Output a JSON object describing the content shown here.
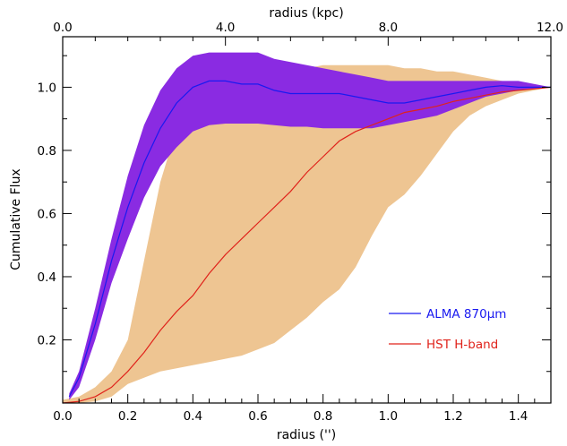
{
  "chart_data": {
    "type": "area",
    "xlabel": "radius ('')",
    "ylabel": "Cumulative Flux",
    "top_xlabel": "radius (kpc)",
    "xlim": [
      0.0,
      1.5
    ],
    "ylim": [
      0.0,
      1.16
    ],
    "x_ticks": [
      0.0,
      0.2,
      0.4,
      0.6,
      0.8,
      1.0,
      1.2,
      1.4
    ],
    "x_tick_labels": [
      "0.0",
      "0.2",
      "0.4",
      "0.6",
      "0.8",
      "1.0",
      "1.2",
      "1.4"
    ],
    "y_ticks": [
      0.2,
      0.4,
      0.6,
      0.8,
      1.0
    ],
    "y_tick_labels": [
      "0.2",
      "0.4",
      "0.6",
      "0.8",
      "1.0"
    ],
    "top_x_ticks": [
      0.0,
      0.5,
      1.0,
      1.5
    ],
    "top_x_tick_labels": [
      "0.0",
      "4.0",
      "8.0",
      "12.0"
    ],
    "grid": false,
    "legend_position": "bottom-right",
    "series": [
      {
        "name": "HST H-band",
        "line_color": "#e0231b",
        "band_color": "#eec592",
        "x": [
          0.0,
          0.05,
          0.1,
          0.15,
          0.2,
          0.25,
          0.3,
          0.35,
          0.4,
          0.45,
          0.5,
          0.55,
          0.6,
          0.65,
          0.7,
          0.75,
          0.8,
          0.85,
          0.9,
          0.95,
          1.0,
          1.05,
          1.1,
          1.15,
          1.2,
          1.25,
          1.3,
          1.35,
          1.4,
          1.45,
          1.5
        ],
        "values": [
          0.0,
          0.005,
          0.02,
          0.05,
          0.1,
          0.16,
          0.23,
          0.29,
          0.34,
          0.41,
          0.47,
          0.52,
          0.57,
          0.62,
          0.67,
          0.73,
          0.78,
          0.83,
          0.86,
          0.88,
          0.9,
          0.92,
          0.93,
          0.94,
          0.955,
          0.965,
          0.975,
          0.985,
          0.99,
          0.995,
          1.0
        ],
        "band_upper": [
          0.01,
          0.02,
          0.05,
          0.1,
          0.2,
          0.45,
          0.7,
          0.87,
          0.9,
          0.93,
          0.96,
          0.99,
          1.02,
          1.04,
          1.05,
          1.06,
          1.07,
          1.07,
          1.07,
          1.07,
          1.07,
          1.06,
          1.06,
          1.05,
          1.05,
          1.04,
          1.03,
          1.02,
          1.01,
          1.005,
          1.0
        ],
        "band_lower": [
          0.0,
          0.0,
          0.005,
          0.02,
          0.06,
          0.08,
          0.1,
          0.11,
          0.12,
          0.13,
          0.14,
          0.15,
          0.17,
          0.19,
          0.23,
          0.27,
          0.32,
          0.36,
          0.43,
          0.53,
          0.62,
          0.66,
          0.72,
          0.79,
          0.86,
          0.91,
          0.94,
          0.96,
          0.98,
          0.99,
          1.0
        ]
      },
      {
        "name": "ALMA 870μm",
        "line_color": "#1a1af0",
        "band_color": "#8a2be2",
        "x": [
          0.02,
          0.05,
          0.1,
          0.15,
          0.2,
          0.25,
          0.3,
          0.35,
          0.4,
          0.45,
          0.5,
          0.55,
          0.6,
          0.65,
          0.7,
          0.75,
          0.8,
          0.85,
          0.9,
          0.95,
          1.0,
          1.05,
          1.1,
          1.15,
          1.2,
          1.25,
          1.3,
          1.35,
          1.4,
          1.45,
          1.5
        ],
        "values": [
          0.02,
          0.08,
          0.25,
          0.45,
          0.62,
          0.76,
          0.87,
          0.95,
          1.0,
          1.02,
          1.02,
          1.01,
          1.01,
          0.99,
          0.98,
          0.98,
          0.98,
          0.98,
          0.97,
          0.96,
          0.95,
          0.95,
          0.96,
          0.97,
          0.98,
          0.99,
          1.0,
          1.005,
          1.0,
          1.0,
          1.0
        ],
        "band_upper": [
          0.03,
          0.1,
          0.3,
          0.52,
          0.72,
          0.88,
          0.99,
          1.06,
          1.1,
          1.11,
          1.11,
          1.11,
          1.11,
          1.09,
          1.08,
          1.07,
          1.06,
          1.05,
          1.04,
          1.03,
          1.02,
          1.02,
          1.02,
          1.02,
          1.02,
          1.02,
          1.02,
          1.02,
          1.02,
          1.01,
          1.0
        ],
        "band_lower": [
          0.01,
          0.05,
          0.2,
          0.38,
          0.52,
          0.65,
          0.75,
          0.81,
          0.86,
          0.88,
          0.885,
          0.885,
          0.885,
          0.88,
          0.875,
          0.875,
          0.87,
          0.87,
          0.87,
          0.87,
          0.88,
          0.89,
          0.9,
          0.91,
          0.93,
          0.95,
          0.97,
          0.98,
          0.99,
          0.995,
          1.0
        ]
      }
    ]
  }
}
